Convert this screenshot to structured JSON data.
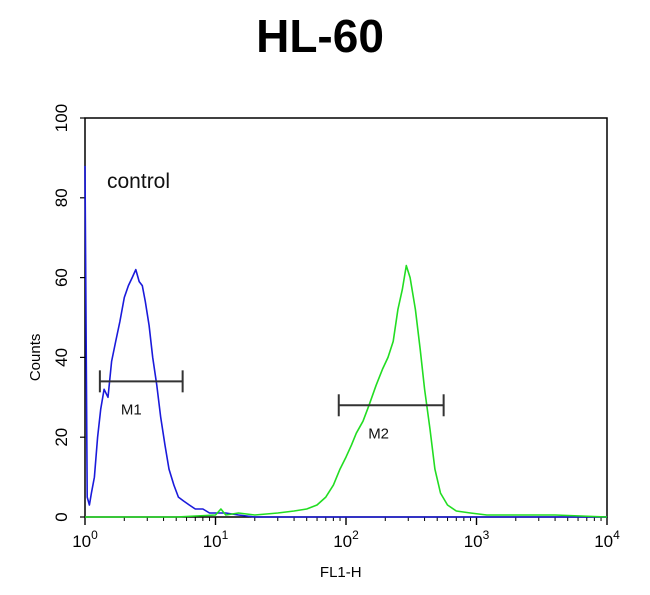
{
  "chart_data": {
    "type": "line",
    "title": "HL-60",
    "xlabel": "FL1-H",
    "ylabel": "Counts",
    "x_scale": "log",
    "xlim": [
      1,
      10000
    ],
    "ylim": [
      0,
      100
    ],
    "x_ticks": [
      {
        "value": 1,
        "base": "10",
        "exp": "0"
      },
      {
        "value": 10,
        "base": "10",
        "exp": "1"
      },
      {
        "value": 100,
        "base": "10",
        "exp": "2"
      },
      {
        "value": 1000,
        "base": "10",
        "exp": "3"
      },
      {
        "value": 10000,
        "base": "10",
        "exp": "4"
      }
    ],
    "y_ticks": [
      "0",
      "20",
      "40",
      "60",
      "80",
      "100"
    ],
    "annotation": "control",
    "series": [
      {
        "color": "#1a1adb",
        "x": [
          1.0,
          1.04,
          1.08,
          1.12,
          1.18,
          1.25,
          1.32,
          1.4,
          1.5,
          1.6,
          1.72,
          1.85,
          2.0,
          2.15,
          2.3,
          2.45,
          2.6,
          2.75,
          2.9,
          3.1,
          3.3,
          3.55,
          3.8,
          4.1,
          4.4,
          4.8,
          5.2,
          5.7,
          6.3,
          7.0,
          8.0,
          9.0,
          10.0,
          12.0,
          15.0,
          20.0,
          30.0,
          50.0,
          100.0,
          300.0,
          1000.0,
          10000.0
        ],
        "y": [
          88,
          5,
          3,
          6,
          10,
          20,
          27,
          32,
          30,
          39,
          44,
          49,
          55,
          58,
          60,
          62,
          59,
          58,
          54,
          48,
          40,
          33,
          25,
          18,
          12,
          8,
          5,
          4,
          3,
          2,
          2,
          1,
          1,
          1,
          0.5,
          0,
          0,
          0,
          0,
          0,
          0,
          0
        ]
      },
      {
        "color": "#22dd22",
        "x": [
          1.0,
          5.0,
          10.0,
          11.0,
          12.0,
          15.0,
          20.0,
          30.0,
          40.0,
          50.0,
          60.0,
          70.0,
          80.0,
          90.0,
          100.0,
          110.0,
          120.0,
          135.0,
          150.0,
          170.0,
          190.0,
          210.0,
          230.0,
          250.0,
          270.0,
          290.0,
          310.0,
          340.0,
          370.0,
          400.0,
          440.0,
          480.0,
          530.0,
          600.0,
          700.0,
          900.0,
          1200.0,
          2000.0,
          4000.0,
          10000.0
        ],
        "y": [
          0,
          0,
          0.5,
          2,
          0.5,
          1,
          0.5,
          1,
          1.5,
          2,
          3,
          5,
          8,
          12,
          15,
          18,
          21,
          24,
          28,
          33,
          37,
          40,
          44,
          52,
          57,
          63,
          60,
          52,
          42,
          32,
          22,
          12,
          6,
          3,
          1.5,
          1,
          0.5,
          0.5,
          0.5,
          0
        ]
      }
    ],
    "markers": [
      {
        "label": "M1",
        "x_start": 1.3,
        "x_end": 5.6,
        "y": 34
      },
      {
        "label": "M2",
        "x_start": 88,
        "x_end": 560,
        "y": 28
      }
    ]
  }
}
